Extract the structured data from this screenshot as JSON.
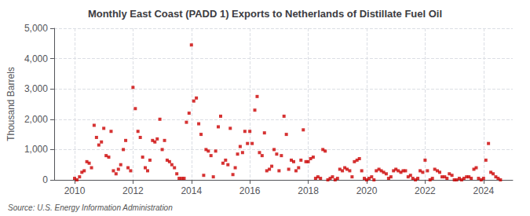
{
  "chart_data": {
    "type": "scatter",
    "title": "Monthly East Coast (PADD 1) Exports to Netherlands of Distillate Fuel Oil",
    "ylabel": "Thousand Barrels",
    "annotation": "Source: U.S. Energy Information Administration",
    "color": "#cc0000",
    "marker": "square",
    "grid": true,
    "xlim": [
      2009.3,
      2025.0
    ],
    "xticks": [
      2010,
      2012,
      2014,
      2016,
      2018,
      2020,
      2022,
      2024
    ],
    "ylim": [
      0,
      5000
    ],
    "yticks": [
      0,
      {
        "value": 1000,
        "label": "1,000"
      },
      {
        "value": 2000,
        "label": "2,000"
      },
      {
        "value": 3000,
        "label": "3,000"
      },
      {
        "value": 4000,
        "label": "4,000"
      },
      {
        "value": 5000,
        "label": "5,000"
      }
    ],
    "x": [
      2010.0,
      2010.08,
      2010.17,
      2010.25,
      2010.33,
      2010.42,
      2010.5,
      2010.58,
      2010.67,
      2010.75,
      2010.83,
      2010.92,
      2011.0,
      2011.08,
      2011.17,
      2011.25,
      2011.33,
      2011.42,
      2011.5,
      2011.58,
      2011.67,
      2011.75,
      2011.83,
      2011.92,
      2012.0,
      2012.08,
      2012.17,
      2012.25,
      2012.33,
      2012.42,
      2012.5,
      2012.58,
      2012.67,
      2012.75,
      2012.83,
      2012.92,
      2013.0,
      2013.08,
      2013.17,
      2013.25,
      2013.33,
      2013.42,
      2013.5,
      2013.58,
      2013.67,
      2013.75,
      2013.83,
      2013.92,
      2014.0,
      2014.08,
      2014.17,
      2014.25,
      2014.33,
      2014.42,
      2014.5,
      2014.58,
      2014.67,
      2014.75,
      2014.83,
      2014.92,
      2015.0,
      2015.08,
      2015.17,
      2015.25,
      2015.33,
      2015.42,
      2015.5,
      2015.58,
      2015.67,
      2015.75,
      2015.83,
      2015.92,
      2016.0,
      2016.08,
      2016.17,
      2016.25,
      2016.33,
      2016.42,
      2016.5,
      2016.58,
      2016.67,
      2016.75,
      2016.83,
      2016.92,
      2017.0,
      2017.08,
      2017.17,
      2017.25,
      2017.33,
      2017.42,
      2017.5,
      2017.58,
      2017.67,
      2017.75,
      2017.83,
      2017.92,
      2018.0,
      2018.08,
      2018.17,
      2018.25,
      2018.33,
      2018.42,
      2018.5,
      2018.58,
      2018.67,
      2018.75,
      2018.83,
      2018.92,
      2019.0,
      2019.08,
      2019.17,
      2019.25,
      2019.33,
      2019.42,
      2019.5,
      2019.58,
      2019.67,
      2019.75,
      2019.83,
      2019.92,
      2020.0,
      2020.08,
      2020.17,
      2020.25,
      2020.33,
      2020.42,
      2020.5,
      2020.58,
      2020.67,
      2020.75,
      2020.83,
      2020.92,
      2021.0,
      2021.08,
      2021.17,
      2021.25,
      2021.33,
      2021.42,
      2021.5,
      2021.58,
      2021.67,
      2021.75,
      2021.83,
      2021.92,
      2022.0,
      2022.08,
      2022.17,
      2022.25,
      2022.33,
      2022.42,
      2022.5,
      2022.58,
      2022.67,
      2022.75,
      2022.83,
      2022.92,
      2023.0,
      2023.08,
      2023.17,
      2023.25,
      2023.33,
      2023.42,
      2023.5,
      2023.58,
      2023.67,
      2023.75,
      2023.83,
      2023.92,
      2024.0,
      2024.08,
      2024.17,
      2024.25,
      2024.33,
      2024.42,
      2024.5,
      2024.58
    ],
    "values": [
      50,
      0,
      100,
      250,
      300,
      600,
      550,
      400,
      1800,
      1400,
      1150,
      1250,
      1700,
      800,
      750,
      1600,
      300,
      200,
      350,
      500,
      1000,
      1300,
      400,
      300,
      3050,
      2350,
      1600,
      1400,
      750,
      400,
      300,
      650,
      1300,
      1250,
      1350,
      2000,
      1000,
      1300,
      650,
      600,
      500,
      400,
      200,
      50,
      50,
      50,
      1900,
      2200,
      4450,
      2600,
      2700,
      1850,
      1500,
      150,
      1000,
      950,
      800,
      100,
      950,
      1750,
      2100,
      550,
      650,
      500,
      1700,
      175,
      400,
      850,
      1100,
      900,
      1600,
      1200,
      1600,
      1200,
      2300,
      2750,
      900,
      800,
      1550,
      300,
      350,
      450,
      1000,
      850,
      300,
      800,
      2100,
      1500,
      350,
      650,
      600,
      300,
      400,
      650,
      1650,
      600,
      600,
      700,
      750,
      50,
      100,
      50,
      1000,
      950,
      0,
      50,
      100,
      0,
      50,
      350,
      300,
      400,
      350,
      300,
      100,
      600,
      650,
      700,
      300,
      50,
      0,
      50,
      100,
      0,
      300,
      350,
      300,
      250,
      200,
      50,
      100,
      300,
      350,
      300,
      250,
      300,
      300,
      100,
      150,
      50,
      0,
      50,
      300,
      250,
      650,
      300,
      0,
      50,
      350,
      300,
      250,
      100,
      100,
      50,
      200,
      150,
      0,
      0,
      50,
      0,
      50,
      100,
      100,
      50,
      350,
      400,
      50,
      0,
      50,
      650,
      1200,
      250,
      200,
      100,
      50,
      0
    ]
  }
}
